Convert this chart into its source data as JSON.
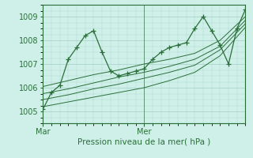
{
  "bg_color": "#cff0e8",
  "grid_color": "#aad4cc",
  "line_color": "#2a6e3a",
  "xlabel": "Pression niveau de la mer( hPa )",
  "xlabel_color": "#2a6e3a",
  "axis_color": "#2a6e3a",
  "tick_color": "#2a6e3a",
  "ylim": [
    1004.5,
    1009.5
  ],
  "yticks": [
    1005,
    1006,
    1007,
    1008,
    1009
  ],
  "xlim": [
    0,
    48
  ],
  "xtick_positions": [
    0,
    24
  ],
  "xtick_labels": [
    "Mar",
    "Mer"
  ],
  "vline_x": 24,
  "line1_x": [
    0,
    2,
    4,
    6,
    8,
    10,
    12,
    14,
    16,
    18,
    20,
    22,
    24,
    26,
    28,
    30,
    32,
    34,
    36,
    38,
    40,
    42,
    44,
    46,
    48
  ],
  "line1_y": [
    1005.1,
    1005.8,
    1006.1,
    1007.2,
    1007.7,
    1008.2,
    1008.4,
    1007.5,
    1006.7,
    1006.5,
    1006.6,
    1006.7,
    1006.8,
    1007.2,
    1007.5,
    1007.7,
    1007.8,
    1007.9,
    1008.5,
    1009.0,
    1008.4,
    1007.8,
    1007.0,
    1008.5,
    1009.3
  ],
  "line2_x": [
    0,
    6,
    12,
    18,
    24,
    30,
    36,
    42,
    48
  ],
  "line2_y": [
    1006.05,
    1006.3,
    1006.55,
    1006.75,
    1007.0,
    1007.2,
    1007.45,
    1008.0,
    1009.0
  ],
  "line3_x": [
    0,
    6,
    12,
    18,
    24,
    30,
    36,
    42,
    48
  ],
  "line3_y": [
    1005.75,
    1005.95,
    1006.2,
    1006.45,
    1006.65,
    1006.9,
    1007.2,
    1007.75,
    1008.85
  ],
  "line4_x": [
    0,
    6,
    12,
    18,
    24,
    30,
    36,
    42,
    48
  ],
  "line4_y": [
    1005.5,
    1005.7,
    1005.95,
    1006.15,
    1006.4,
    1006.65,
    1006.95,
    1007.6,
    1008.7
  ],
  "line5_x": [
    0,
    6,
    12,
    18,
    24,
    30,
    36,
    42,
    48
  ],
  "line5_y": [
    1005.2,
    1005.4,
    1005.6,
    1005.8,
    1006.0,
    1006.3,
    1006.65,
    1007.35,
    1008.55
  ]
}
